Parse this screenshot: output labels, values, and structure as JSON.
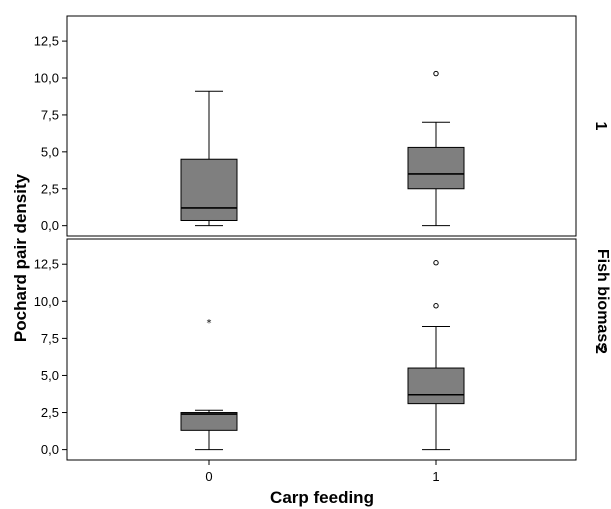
{
  "chart_data": {
    "type": "boxplot",
    "xlabel": "Carp feeding",
    "ylabel": "Pochard pair density",
    "facet_label": "Fish biomass",
    "categories": [
      "0",
      "1"
    ],
    "y_ticks": [
      "0,0",
      "2,5",
      "5,0",
      "7,5",
      "10,0",
      "12,5"
    ],
    "ylim": [
      -0.7,
      14.2
    ],
    "box_color": "#7f7f7f",
    "panels": [
      {
        "label": "1",
        "boxes": [
          {
            "category": "0",
            "whisker_low": 0.0,
            "q1": 0.35,
            "median": 1.2,
            "q3": 4.5,
            "whisker_high": 9.1,
            "outliers": [],
            "extremes": []
          },
          {
            "category": "1",
            "whisker_low": 0.0,
            "q1": 2.5,
            "median": 3.5,
            "q3": 5.3,
            "whisker_high": 7.0,
            "outliers": [
              10.3
            ],
            "extremes": []
          }
        ]
      },
      {
        "label": "2",
        "boxes": [
          {
            "category": "0",
            "whisker_low": 0.0,
            "q1": 1.3,
            "median": 2.4,
            "q3": 2.5,
            "whisker_high": 2.65,
            "outliers": [],
            "extremes": [
              8.6
            ]
          },
          {
            "category": "1",
            "whisker_low": 0.0,
            "q1": 3.1,
            "median": 3.7,
            "q3": 5.5,
            "whisker_high": 8.3,
            "outliers": [
              9.7,
              12.6
            ],
            "extremes": []
          }
        ]
      }
    ]
  }
}
